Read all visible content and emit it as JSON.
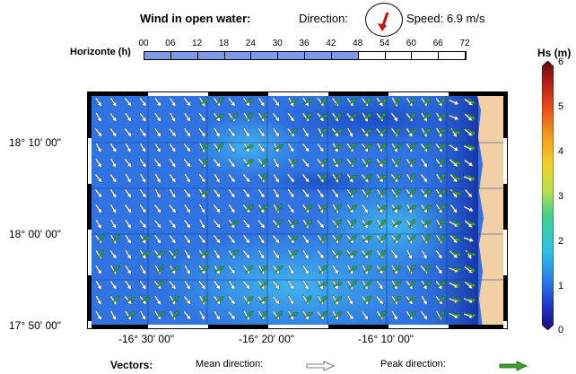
{
  "header": {
    "wind_title": "Wind in open water:",
    "direction_label": "Direction:",
    "speed_label": "Speed: 6.9 m/s"
  },
  "horizon": {
    "label": "Horizonte (h)",
    "ticks": [
      "00",
      "06",
      "12",
      "18",
      "24",
      "30",
      "36",
      "42",
      "48",
      "54",
      "60",
      "66",
      "72"
    ],
    "selected_fraction": 0.667
  },
  "map": {
    "lat_labels": [
      "18° 10' 00\"",
      "18° 00' 00\"",
      "17° 50' 00\""
    ],
    "lon_labels": [
      "-16° 30' 00\"",
      "-16° 20' 00\"",
      "-16° 10' 00\""
    ]
  },
  "colorbar": {
    "title": "Hs (m)",
    "ticks": [
      "6",
      "5",
      "4",
      "3",
      "2",
      "1",
      "0"
    ]
  },
  "legend": {
    "vectors_label": "Vectors:",
    "mean_label": "Mean direction:",
    "peak_label": "Peak direction:"
  },
  "colors": {
    "mean_arrow": "#ffffff",
    "peak_arrow": "#3aa52a",
    "wind_arrow": "#cc1111",
    "horizon_fill": "#7d9ae6",
    "land": "#f3cfa6"
  }
}
